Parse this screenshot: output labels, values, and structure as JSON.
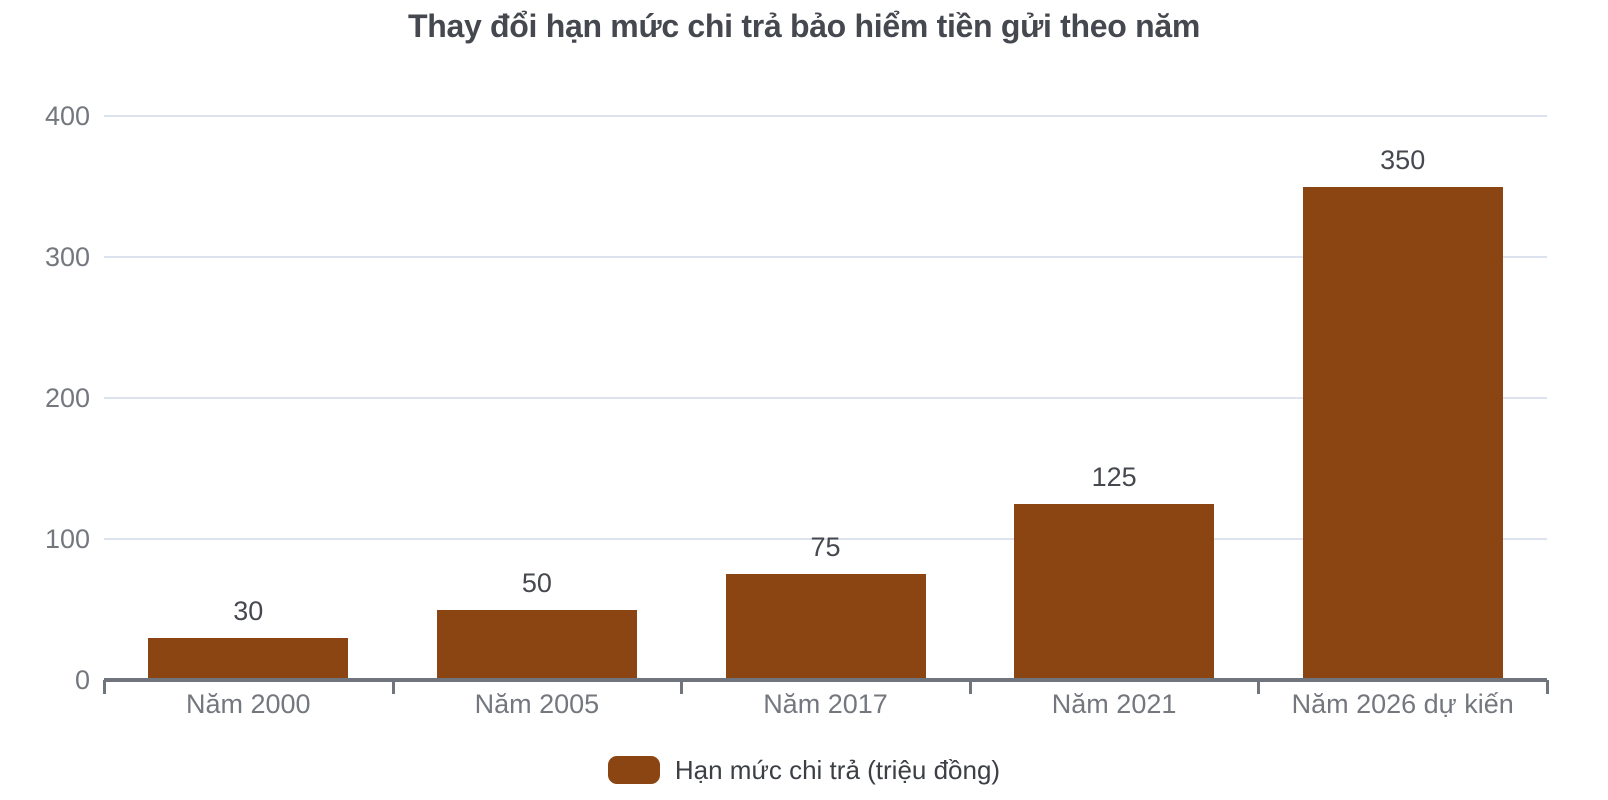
{
  "chart_data": {
    "type": "bar",
    "title": "Thay đổi hạn mức chi trả bảo hiểm tiền gửi theo năm",
    "categories": [
      "Năm 2000",
      "Năm 2005",
      "Năm 2017",
      "Năm 2021",
      "Năm 2026 dự kiến"
    ],
    "values": [
      30,
      50,
      75,
      125,
      350
    ],
    "series_name": "Hạn mức chi trả (triệu đồng)",
    "yticks": [
      0,
      100,
      200,
      300,
      400
    ],
    "ylim": [
      0,
      400
    ],
    "xlabel": "",
    "ylabel": "",
    "grid": "horizontal",
    "legend_position": "bottom",
    "bar_color": "#8B4513",
    "colors": {
      "grid": "#dde3ee",
      "axis": "#70747c",
      "tick_label": "#74787e",
      "data_label": "#45484e",
      "title": "#45484e",
      "legend_text": "#3c4045",
      "background": "#ffffff"
    }
  }
}
